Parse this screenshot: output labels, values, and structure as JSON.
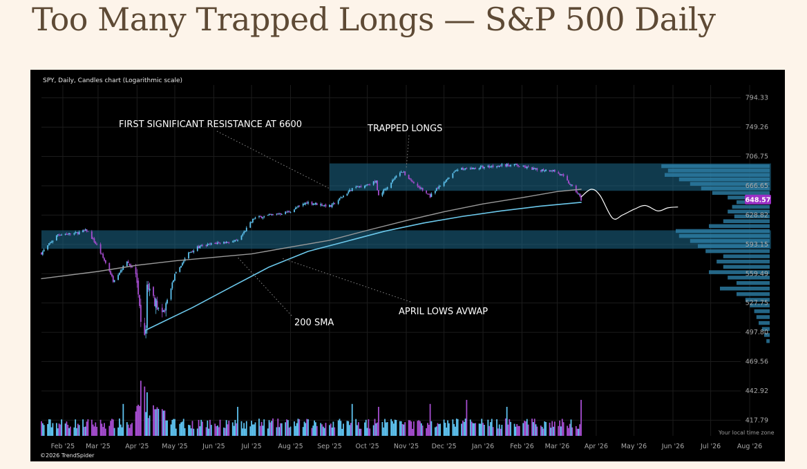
{
  "page": {
    "title": "Too Many Trapped Longs — S&P 500 Daily"
  },
  "chart_data": {
    "type": "candlestick",
    "title": "SPY, Daily, Candles chart (Logarithmic scale)",
    "y_scale": "log",
    "ylim": [
      405,
      815
    ],
    "x_range": [
      "2025-01-15",
      "2026-08-18"
    ],
    "y_ticks": [
      794.33,
      749.26,
      706.75,
      666.65,
      628.82,
      593.15,
      559.49,
      527.75,
      497.8,
      469.56,
      442.92,
      417.79
    ],
    "x_ticks": [
      {
        "date": "2025-02-01",
        "label": "Feb '25"
      },
      {
        "date": "2025-03-01",
        "label": "Mar '25"
      },
      {
        "date": "2025-04-01",
        "label": "Apr '25"
      },
      {
        "date": "2025-05-01",
        "label": "May '25"
      },
      {
        "date": "2025-06-01",
        "label": "Jun '25"
      },
      {
        "date": "2025-07-01",
        "label": "Jul '25"
      },
      {
        "date": "2025-08-01",
        "label": "Aug '25"
      },
      {
        "date": "2025-09-01",
        "label": "Sep '25"
      },
      {
        "date": "2025-10-01",
        "label": "Oct '25"
      },
      {
        "date": "2025-11-01",
        "label": "Nov '25"
      },
      {
        "date": "2025-12-01",
        "label": "Dec '25"
      },
      {
        "date": "2026-01-01",
        "label": "Jan '26"
      },
      {
        "date": "2026-02-01",
        "label": "Feb '26"
      },
      {
        "date": "2026-03-01",
        "label": "Mar '26"
      },
      {
        "date": "2026-04-01",
        "label": "Apr '26"
      },
      {
        "date": "2026-05-01",
        "label": "May '26"
      },
      {
        "date": "2026-06-01",
        "label": "Jun '26"
      },
      {
        "date": "2026-07-01",
        "label": "Jul '26"
      },
      {
        "date": "2026-08-01",
        "label": "Aug '26"
      }
    ],
    "last_price": 648.57,
    "last_price_color": "#9b30c6",
    "price_path": [
      [
        "2025-01-15",
        583
      ],
      [
        "2025-01-28",
        605
      ],
      [
        "2025-02-10",
        606
      ],
      [
        "2025-02-20",
        610
      ],
      [
        "2025-02-28",
        592
      ],
      [
        "2025-03-10",
        563
      ],
      [
        "2025-03-13",
        552
      ],
      [
        "2025-03-24",
        573
      ],
      [
        "2025-03-31",
        561
      ],
      [
        "2025-04-04",
        506
      ],
      [
        "2025-04-08",
        496
      ],
      [
        "2025-04-09",
        548
      ],
      [
        "2025-04-21",
        513
      ],
      [
        "2025-05-01",
        558
      ],
      [
        "2025-05-12",
        583
      ],
      [
        "2025-05-20",
        590
      ],
      [
        "2025-06-04",
        595
      ],
      [
        "2025-06-20",
        597
      ],
      [
        "2025-07-03",
        625
      ],
      [
        "2025-07-31",
        633
      ],
      [
        "2025-08-14",
        645
      ],
      [
        "2025-09-02",
        640
      ],
      [
        "2025-09-19",
        663
      ],
      [
        "2025-10-08",
        672
      ],
      [
        "2025-10-10",
        653
      ],
      [
        "2025-10-28",
        687
      ],
      [
        "2025-11-07",
        670
      ],
      [
        "2025-11-20",
        653
      ],
      [
        "2025-12-11",
        689
      ],
      [
        "2025-12-24",
        690
      ],
      [
        "2026-01-12",
        694
      ],
      [
        "2026-01-26",
        695
      ],
      [
        "2026-02-13",
        688
      ],
      [
        "2026-02-25",
        688
      ],
      [
        "2026-03-05",
        680
      ],
      [
        "2026-03-12",
        667
      ],
      [
        "2026-03-18",
        655
      ],
      [
        "2026-03-20",
        648.57
      ]
    ],
    "sma200": [
      [
        "2025-01-15",
        554
      ],
      [
        "2025-03-01",
        562
      ],
      [
        "2025-04-01",
        569
      ],
      [
        "2025-05-01",
        574
      ],
      [
        "2025-06-01",
        578
      ],
      [
        "2025-07-01",
        582
      ],
      [
        "2025-08-01",
        590
      ],
      [
        "2025-09-01",
        598
      ],
      [
        "2025-10-01",
        610
      ],
      [
        "2025-11-01",
        622
      ],
      [
        "2025-12-01",
        633
      ],
      [
        "2026-01-01",
        643
      ],
      [
        "2026-02-01",
        651
      ],
      [
        "2026-03-01",
        659
      ],
      [
        "2026-03-20",
        662
      ]
    ],
    "april_lows_avwap": [
      [
        "2025-04-08",
        500
      ],
      [
        "2025-04-21",
        508
      ],
      [
        "2025-05-15",
        523
      ],
      [
        "2025-06-15",
        545
      ],
      [
        "2025-07-15",
        567
      ],
      [
        "2025-08-15",
        585
      ],
      [
        "2025-09-15",
        597
      ],
      [
        "2025-10-15",
        609
      ],
      [
        "2025-11-15",
        619
      ],
      [
        "2025-12-15",
        627
      ],
      [
        "2026-01-15",
        634
      ],
      [
        "2026-02-15",
        640
      ],
      [
        "2026-03-20",
        645
      ]
    ],
    "projection": [
      [
        "2026-03-20",
        652
      ],
      [
        "2026-03-28",
        662
      ],
      [
        "2026-04-04",
        654
      ],
      [
        "2026-04-14",
        625
      ],
      [
        "2026-04-22",
        629
      ],
      [
        "2026-05-01",
        636
      ],
      [
        "2026-05-10",
        641
      ],
      [
        "2026-05-20",
        634
      ],
      [
        "2026-05-28",
        638
      ],
      [
        "2026-06-05",
        639
      ]
    ],
    "zones": [
      {
        "name": "trapped-longs-zone",
        "x0": "2025-09-01",
        "x1": "2026-08-18",
        "y0": 660,
        "y1": 697
      },
      {
        "name": "resistance-zone",
        "x0": "2025-01-15",
        "x1": "2026-08-18",
        "y0": 588,
        "y1": 610
      }
    ],
    "volume_profile": [
      {
        "price": 693,
        "size": 0.98
      },
      {
        "price": 687,
        "size": 0.92
      },
      {
        "price": 681,
        "size": 0.95
      },
      {
        "price": 675,
        "size": 0.82
      },
      {
        "price": 669,
        "size": 0.72
      },
      {
        "price": 663,
        "size": 0.62
      },
      {
        "price": 657,
        "size": 0.52
      },
      {
        "price": 651,
        "size": 0.38
      },
      {
        "price": 645,
        "size": 0.3
      },
      {
        "price": 639,
        "size": 0.34
      },
      {
        "price": 633,
        "size": 0.38
      },
      {
        "price": 627,
        "size": 0.32
      },
      {
        "price": 621,
        "size": 0.42
      },
      {
        "price": 615,
        "size": 0.55
      },
      {
        "price": 609,
        "size": 0.85
      },
      {
        "price": 603,
        "size": 0.82
      },
      {
        "price": 597,
        "size": 0.72
      },
      {
        "price": 591,
        "size": 0.65
      },
      {
        "price": 585,
        "size": 0.58
      },
      {
        "price": 579,
        "size": 0.42
      },
      {
        "price": 573,
        "size": 0.48
      },
      {
        "price": 567,
        "size": 0.42
      },
      {
        "price": 561,
        "size": 0.55
      },
      {
        "price": 555,
        "size": 0.38
      },
      {
        "price": 549,
        "size": 0.3
      },
      {
        "price": 543,
        "size": 0.45
      },
      {
        "price": 537,
        "size": 0.3
      },
      {
        "price": 531,
        "size": 0.22
      },
      {
        "price": 525,
        "size": 0.18
      },
      {
        "price": 519,
        "size": 0.14
      },
      {
        "price": 513,
        "size": 0.12
      },
      {
        "price": 507,
        "size": 0.1
      },
      {
        "price": 501,
        "size": 0.07
      },
      {
        "price": 495,
        "size": 0.05
      },
      {
        "price": 489,
        "size": 0.03
      }
    ],
    "volume_spikes": [
      {
        "date": "2025-04-04",
        "level": 0.95
      },
      {
        "date": "2025-04-07",
        "level": 0.85
      },
      {
        "date": "2025-04-09",
        "level": 0.75
      },
      {
        "date": "2025-03-21",
        "level": 0.55
      },
      {
        "date": "2025-06-20",
        "level": 0.5
      },
      {
        "date": "2025-09-19",
        "level": 0.55
      },
      {
        "date": "2025-10-10",
        "level": 0.5
      },
      {
        "date": "2025-11-20",
        "level": 0.55
      },
      {
        "date": "2025-12-19",
        "level": 0.62
      },
      {
        "date": "2026-01-20",
        "level": 0.5
      },
      {
        "date": "2026-03-20",
        "level": 0.62
      }
    ],
    "annotations": [
      {
        "name": "resistance-annotation",
        "text": "FIRST SIGNIFICANT RESISTANCE AT 6600",
        "anchor": "left",
        "line_to": [
          "2025-09-01",
          663
        ]
      },
      {
        "name": "trapped-longs-annotation",
        "text": "TRAPPED LONGS",
        "anchor": "left",
        "line_to": [
          "2025-11-01",
          690
        ]
      },
      {
        "name": "sma-annotation",
        "text": "200 SMA",
        "anchor": "left",
        "line_to": [
          "2025-06-20",
          578
        ]
      },
      {
        "name": "avwap-annotation",
        "text": "APRIL LOWS AVWAP",
        "anchor": "left",
        "line_to": [
          "2025-07-25",
          577
        ]
      }
    ],
    "colors": {
      "up": "#5ec3f0",
      "down": "#a64dd0",
      "sma200": "#9a9a9a",
      "avwap": "#6cc9ec",
      "projection": "#ffffff",
      "zone": "#1e6a8c",
      "profile": "#2d7fa8"
    },
    "timezone_note": "Your local time zone",
    "copyright": "©2026 TrendSpider"
  }
}
